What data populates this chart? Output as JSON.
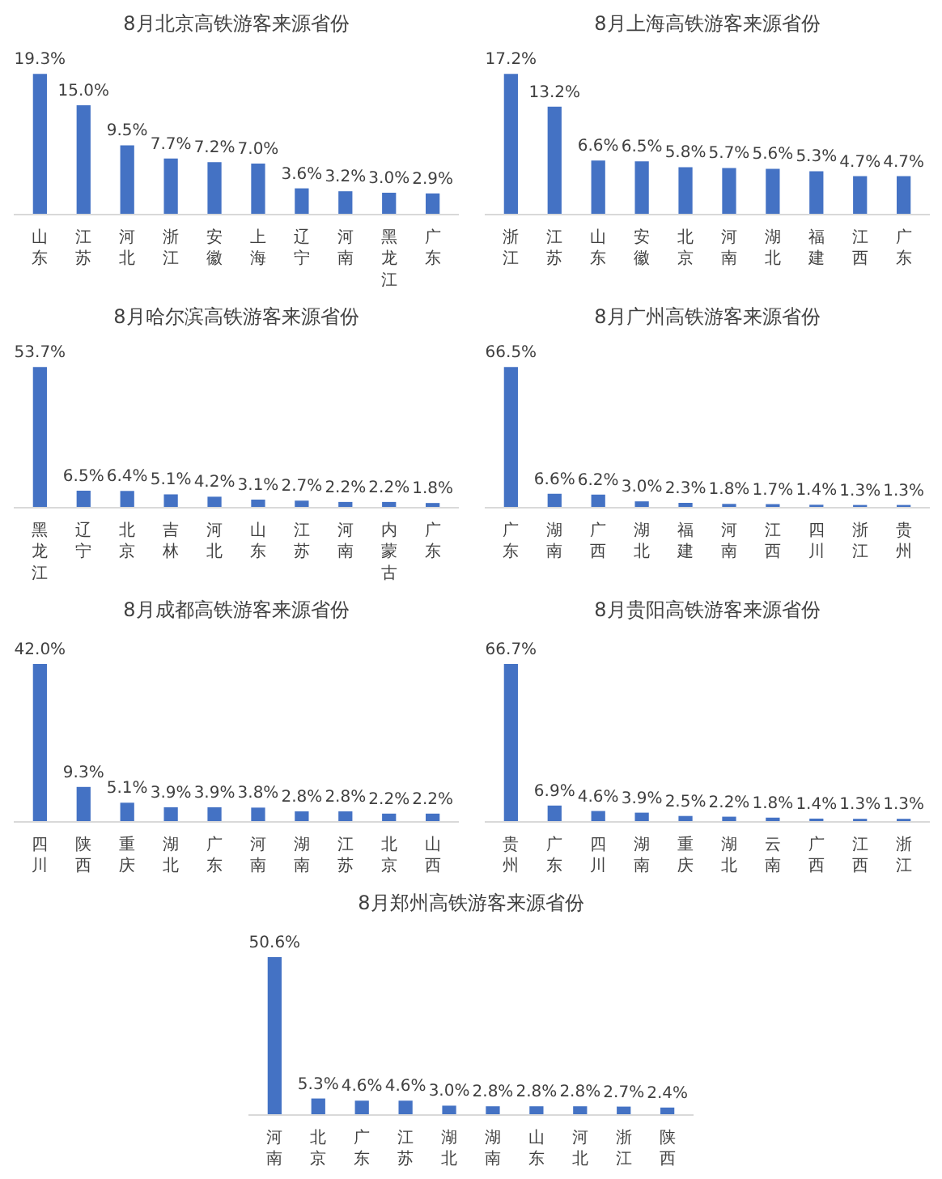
{
  "chart_data": [
    {
      "type": "bar",
      "title": "8月北京高铁游客来源省份",
      "categories": [
        "山东",
        "江苏",
        "河北",
        "浙江",
        "安徽",
        "上海",
        "辽宁",
        "河南",
        "黑龙江",
        "广东"
      ],
      "values": [
        19.3,
        15.0,
        9.5,
        7.7,
        7.2,
        7.0,
        3.6,
        3.2,
        3.0,
        2.9
      ],
      "value_labels": [
        "19.3%",
        "15.0%",
        "9.5%",
        "7.7%",
        "7.2%",
        "7.0%",
        "3.6%",
        "3.2%",
        "3.0%",
        "2.9%"
      ],
      "color": "#4472c4",
      "grid": false
    },
    {
      "type": "bar",
      "title": "8月上海高铁游客来源省份",
      "categories": [
        "浙江",
        "江苏",
        "山东",
        "安徽",
        "北京",
        "河南",
        "湖北",
        "福建",
        "江西",
        "广东"
      ],
      "values": [
        17.2,
        13.2,
        6.6,
        6.5,
        5.8,
        5.7,
        5.6,
        5.3,
        4.7,
        4.7
      ],
      "value_labels": [
        "17.2%",
        "13.2%",
        "6.6%",
        "6.5%",
        "5.8%",
        "5.7%",
        "5.6%",
        "5.3%",
        "4.7%",
        "4.7%"
      ],
      "color": "#4472c4",
      "grid": false
    },
    {
      "type": "bar",
      "title": "8月哈尔滨高铁游客来源省份",
      "categories": [
        "黑龙江",
        "辽宁",
        "北京",
        "吉林",
        "河北",
        "山东",
        "江苏",
        "河南",
        "内蒙古",
        "广东"
      ],
      "values": [
        53.7,
        6.5,
        6.4,
        5.1,
        4.2,
        3.1,
        2.7,
        2.2,
        2.2,
        1.8
      ],
      "value_labels": [
        "53.7%",
        "6.5%",
        "6.4%",
        "5.1%",
        "4.2%",
        "3.1%",
        "2.7%",
        "2.2%",
        "2.2%",
        "1.8%"
      ],
      "color": "#4472c4",
      "grid": false
    },
    {
      "type": "bar",
      "title": "8月广州高铁游客来源省份",
      "categories": [
        "广东",
        "湖南",
        "广西",
        "湖北",
        "福建",
        "河南",
        "江西",
        "四川",
        "浙江",
        "贵州"
      ],
      "values": [
        66.5,
        6.6,
        6.2,
        3.0,
        2.3,
        1.8,
        1.7,
        1.4,
        1.3,
        1.3
      ],
      "value_labels": [
        "66.5%",
        "6.6%",
        "6.2%",
        "3.0%",
        "2.3%",
        "1.8%",
        "1.7%",
        "1.4%",
        "1.3%",
        "1.3%"
      ],
      "color": "#4472c4",
      "grid": false
    },
    {
      "type": "bar",
      "title": "8月成都高铁游客来源省份",
      "categories": [
        "四川",
        "陕西",
        "重庆",
        "湖北",
        "广东",
        "河南",
        "湖南",
        "江苏",
        "北京",
        "山西"
      ],
      "values": [
        42.0,
        9.3,
        5.1,
        3.9,
        3.9,
        3.8,
        2.8,
        2.8,
        2.2,
        2.2
      ],
      "value_labels": [
        "42.0%",
        "9.3%",
        "5.1%",
        "3.9%",
        "3.9%",
        "3.8%",
        "2.8%",
        "2.8%",
        "2.2%",
        "2.2%"
      ],
      "color": "#4472c4",
      "grid": false
    },
    {
      "type": "bar",
      "title": "8月贵阳高铁游客来源省份",
      "categories": [
        "贵州",
        "广东",
        "四川",
        "湖南",
        "重庆",
        "湖北",
        "云南",
        "广西",
        "江西",
        "浙江"
      ],
      "values": [
        66.7,
        6.9,
        4.6,
        3.9,
        2.5,
        2.2,
        1.8,
        1.4,
        1.3,
        1.3
      ],
      "value_labels": [
        "66.7%",
        "6.9%",
        "4.6%",
        "3.9%",
        "2.5%",
        "2.2%",
        "1.8%",
        "1.4%",
        "1.3%",
        "1.3%"
      ],
      "color": "#4472c4",
      "grid": false
    },
    {
      "type": "bar",
      "title": "8月郑州高铁游客来源省份",
      "categories": [
        "河南",
        "北京",
        "广东",
        "江苏",
        "湖北",
        "湖南",
        "山东",
        "河北",
        "浙江",
        "陕西"
      ],
      "values": [
        50.6,
        5.3,
        4.6,
        4.6,
        3.0,
        2.8,
        2.8,
        2.8,
        2.7,
        2.4
      ],
      "value_labels": [
        "50.6%",
        "5.3%",
        "4.6%",
        "4.6%",
        "3.0%",
        "2.8%",
        "2.8%",
        "2.8%",
        "2.7%",
        "2.4%"
      ],
      "color": "#4472c4",
      "grid": false
    }
  ]
}
